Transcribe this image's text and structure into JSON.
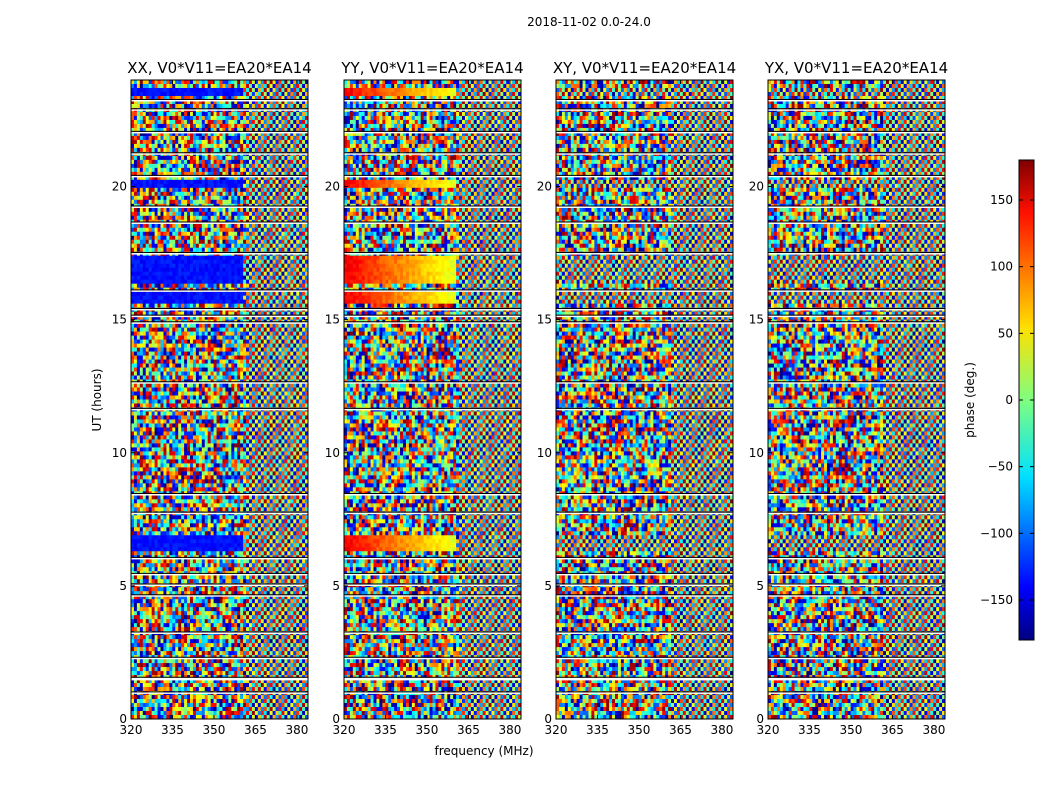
{
  "chart_data": {
    "type": "heatmap",
    "title": "2018-11-02 0.0-24.0",
    "xlabel": "frequency (MHz)",
    "ylabel": "UT (hours)",
    "xlim": [
      320,
      384
    ],
    "ylim": [
      0,
      24
    ],
    "x_ticks": [
      "320",
      "335",
      "350",
      "365",
      "380"
    ],
    "x_tick_values": [
      320,
      335,
      350,
      365,
      380
    ],
    "y_ticks": [
      "0",
      "5",
      "10",
      "15",
      "20"
    ],
    "y_tick_values": [
      0,
      5,
      10,
      15,
      20
    ],
    "panels": [
      {
        "title": "XX, V0*V11=EA20*EA14",
        "pol": "XX",
        "band_level": -130
      },
      {
        "title": "YY, V0*V11=EA20*EA14",
        "pol": "YY",
        "band_level": 140
      },
      {
        "title": "XY, V0*V11=EA20*EA14",
        "pol": "XY",
        "band_level": null
      },
      {
        "title": "YX, V0*V11=EA20*EA14",
        "pol": "YX",
        "band_level": null
      }
    ],
    "colorbar": {
      "label": "phase (deg.)",
      "range": [
        -180,
        180
      ],
      "ticks": [
        "150",
        "100",
        "50",
        "0",
        "−50",
        "−100",
        "−150"
      ],
      "tick_values": [
        150,
        100,
        50,
        0,
        -50,
        -100,
        -150
      ],
      "colormap": "jet"
    },
    "coherent_intervals_ut": [
      [
        6.3,
        6.9
      ],
      [
        15.6,
        16.0
      ],
      [
        16.3,
        17.4
      ],
      [
        19.9,
        20.3
      ],
      [
        23.4,
        23.7
      ]
    ],
    "flagged_gaps_ut": [
      [
        0.95,
        1.0
      ],
      [
        1.45,
        1.55
      ],
      [
        2.25,
        2.3
      ],
      [
        3.2,
        3.25
      ],
      [
        4.6,
        4.65
      ],
      [
        5.0,
        5.05
      ],
      [
        5.4,
        5.45
      ],
      [
        6.0,
        6.05
      ],
      [
        7.7,
        7.75
      ],
      [
        8.4,
        8.45
      ],
      [
        11.6,
        11.65
      ],
      [
        12.6,
        12.65
      ],
      [
        14.85,
        14.9
      ],
      [
        15.1,
        15.15
      ],
      [
        15.35,
        15.4
      ],
      [
        16.05,
        16.1
      ],
      [
        17.45,
        17.5
      ],
      [
        18.6,
        18.65
      ],
      [
        19.2,
        19.25
      ],
      [
        20.35,
        20.4
      ],
      [
        21.2,
        21.25
      ],
      [
        22.0,
        22.05
      ],
      [
        22.85,
        22.9
      ],
      [
        23.2,
        23.25
      ]
    ]
  }
}
